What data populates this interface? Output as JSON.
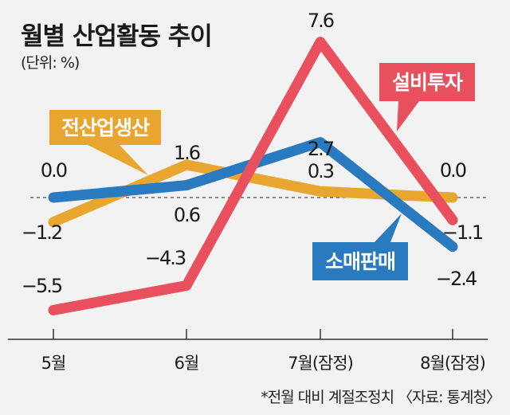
{
  "header": {
    "title": "월별 산업활동 추이",
    "unit": "(단위: %)"
  },
  "footer": {
    "note": "*전월 대비 계절조정치  〈자료: 통계청〉"
  },
  "chart_data": {
    "type": "line",
    "title": "월별 산업활동 추이",
    "ylabel": "(단위: %)",
    "xlabel": "",
    "categories": [
      "5월",
      "6월",
      "7월(잠정)",
      "8월(잠정)"
    ],
    "ylim": [
      -7,
      8
    ],
    "grid": false,
    "reference_line": 0,
    "series": [
      {
        "name": "전산업생산",
        "color": "#e8a631",
        "values": [
          -1.2,
          1.6,
          0.3,
          0.0
        ],
        "labels": [
          "−1.2",
          "1.6",
          "0.3",
          "0.0"
        ]
      },
      {
        "name": "소매판매",
        "color": "#2a7ac0",
        "values": [
          0.0,
          0.6,
          2.7,
          -2.4
        ],
        "labels": [
          "0.0",
          "0.6",
          "2.7",
          "−2.4"
        ]
      },
      {
        "name": "설비투자",
        "color": "#e8505e",
        "values": [
          -5.5,
          -4.3,
          7.6,
          -1.1
        ],
        "labels": [
          "−5.5",
          "−4.3",
          "7.6",
          "−1.1"
        ]
      }
    ],
    "source": "통계청"
  }
}
